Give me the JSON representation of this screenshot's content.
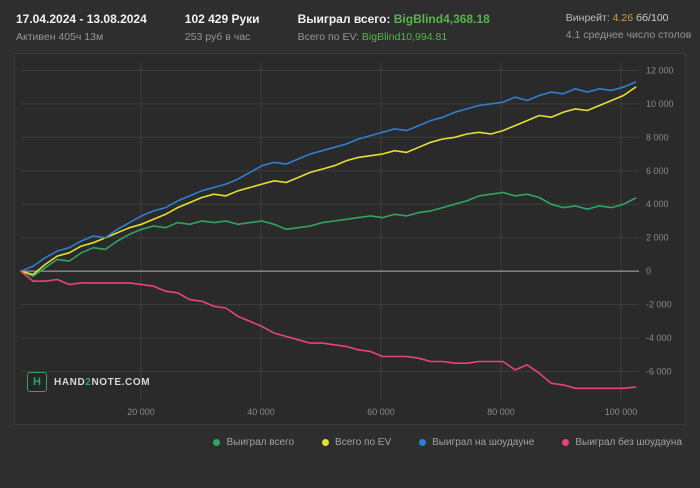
{
  "header": {
    "date_range": "17.04.2024 - 13.08.2024",
    "active_time": "Активен 405ч 13м",
    "hands": "102 429 Руки",
    "per_hour": "253 руб в час",
    "won_total_label": "Выиграл всего:",
    "won_total_value": "BigBlind4,368.18",
    "ev_label": "Всего по EV:",
    "ev_value": "BigBlind10,994.81",
    "winrate_label": "Винрейт:",
    "winrate_value": "4.26",
    "winrate_units": "бб/100",
    "avg_tables": "4.1 среднее число столов",
    "gear_icon": "⚙"
  },
  "logo": {
    "icon_letter": "H",
    "part1": "HAND",
    "part2": "2",
    "part3": "NOTE.COM"
  },
  "colors": {
    "background": "#2e2e2e",
    "plot_background": "#2a2a2a",
    "grid": "#3c3c3c",
    "zero_line": "#8c8c8c",
    "axis_text": "#8a8a8a",
    "green": "#2fa463",
    "yellow": "#e4df33",
    "blue": "#2e7fd2",
    "pink": "#e54672",
    "orange": "#dd9b3d"
  },
  "chart_data": {
    "type": "line",
    "title": "",
    "xlabel": "",
    "ylabel": "",
    "x_max": 102429,
    "xlim": [
      0,
      103000
    ],
    "ylim": [
      -7700,
      12500
    ],
    "grid": true,
    "legend_position": "bottom-right",
    "x_ticks": [
      {
        "value": 20000,
        "label": "20 000"
      },
      {
        "value": 40000,
        "label": "40 000"
      },
      {
        "value": 60000,
        "label": "60 000"
      },
      {
        "value": 80000,
        "label": "80 000"
      },
      {
        "value": 100000,
        "label": "100 000"
      }
    ],
    "y_ticks": [
      {
        "value": 12000,
        "label": "12 000"
      },
      {
        "value": 10000,
        "label": "10 000"
      },
      {
        "value": 8000,
        "label": "8 000"
      },
      {
        "value": 6000,
        "label": "6 000"
      },
      {
        "value": 4000,
        "label": "4 000"
      },
      {
        "value": 2000,
        "label": "2 000"
      },
      {
        "value": 0,
        "label": "0"
      },
      {
        "value": -2000,
        "label": "-2 000"
      },
      {
        "value": -4000,
        "label": "-4 000"
      },
      {
        "value": -6000,
        "label": "-6 000"
      }
    ],
    "series": [
      {
        "name": "Выиграл всего",
        "color": "#2fa463",
        "final_value": 4368.18,
        "values": [
          0,
          -300,
          200,
          700,
          600,
          1100,
          1400,
          1300,
          1800,
          2200,
          2500,
          2700,
          2600,
          2900,
          2800,
          3000,
          2900,
          3000,
          2800,
          2900,
          3000,
          2800,
          2500,
          2600,
          2700,
          2900,
          3000,
          3100,
          3200,
          3300,
          3200,
          3400,
          3300,
          3500,
          3600,
          3800,
          4000,
          4200,
          4500,
          4600,
          4700,
          4500,
          4600,
          4400,
          4000,
          3800,
          3900,
          3700,
          3900,
          3800,
          4000,
          4368
        ]
      },
      {
        "name": "Всего по EV",
        "color": "#e4df33",
        "final_value": 10994.81,
        "values": [
          0,
          -200,
          400,
          900,
          1100,
          1500,
          1700,
          2000,
          2300,
          2600,
          2800,
          3100,
          3400,
          3800,
          4100,
          4400,
          4600,
          4500,
          4800,
          5000,
          5200,
          5400,
          5300,
          5600,
          5900,
          6100,
          6300,
          6600,
          6800,
          6900,
          7000,
          7200,
          7100,
          7400,
          7700,
          7900,
          8000,
          8200,
          8300,
          8200,
          8400,
          8700,
          9000,
          9300,
          9200,
          9500,
          9700,
          9600,
          9900,
          10200,
          10500,
          10995
        ]
      },
      {
        "name": "Выиграл на шоудауне",
        "color": "#2e7fd2",
        "final_value": 11300,
        "values": [
          0,
          300,
          800,
          1200,
          1400,
          1800,
          2100,
          2000,
          2500,
          2900,
          3300,
          3600,
          3800,
          4200,
          4500,
          4800,
          5000,
          5200,
          5500,
          5900,
          6300,
          6500,
          6400,
          6700,
          7000,
          7200,
          7400,
          7600,
          7900,
          8100,
          8300,
          8500,
          8400,
          8700,
          9000,
          9200,
          9500,
          9700,
          9900,
          10000,
          10100,
          10400,
          10200,
          10500,
          10700,
          10600,
          10900,
          10700,
          10900,
          10800,
          11000,
          11300
        ]
      },
      {
        "name": "Выиграл без шоудауна",
        "color": "#e54672",
        "final_value": -6932,
        "values": [
          0,
          -600,
          -600,
          -500,
          -800,
          -700,
          -700,
          -700,
          -700,
          -700,
          -800,
          -900,
          -1200,
          -1300,
          -1700,
          -1800,
          -2100,
          -2200,
          -2700,
          -3000,
          -3300,
          -3700,
          -3900,
          -4100,
          -4300,
          -4300,
          -4400,
          -4500,
          -4700,
          -4800,
          -5100,
          -5100,
          -5100,
          -5200,
          -5400,
          -5400,
          -5500,
          -5500,
          -5400,
          -5400,
          -5400,
          -5900,
          -5600,
          -6100,
          -6700,
          -6800,
          -7000,
          -7000,
          -7000,
          -7000,
          -7000,
          -6932
        ]
      }
    ]
  }
}
